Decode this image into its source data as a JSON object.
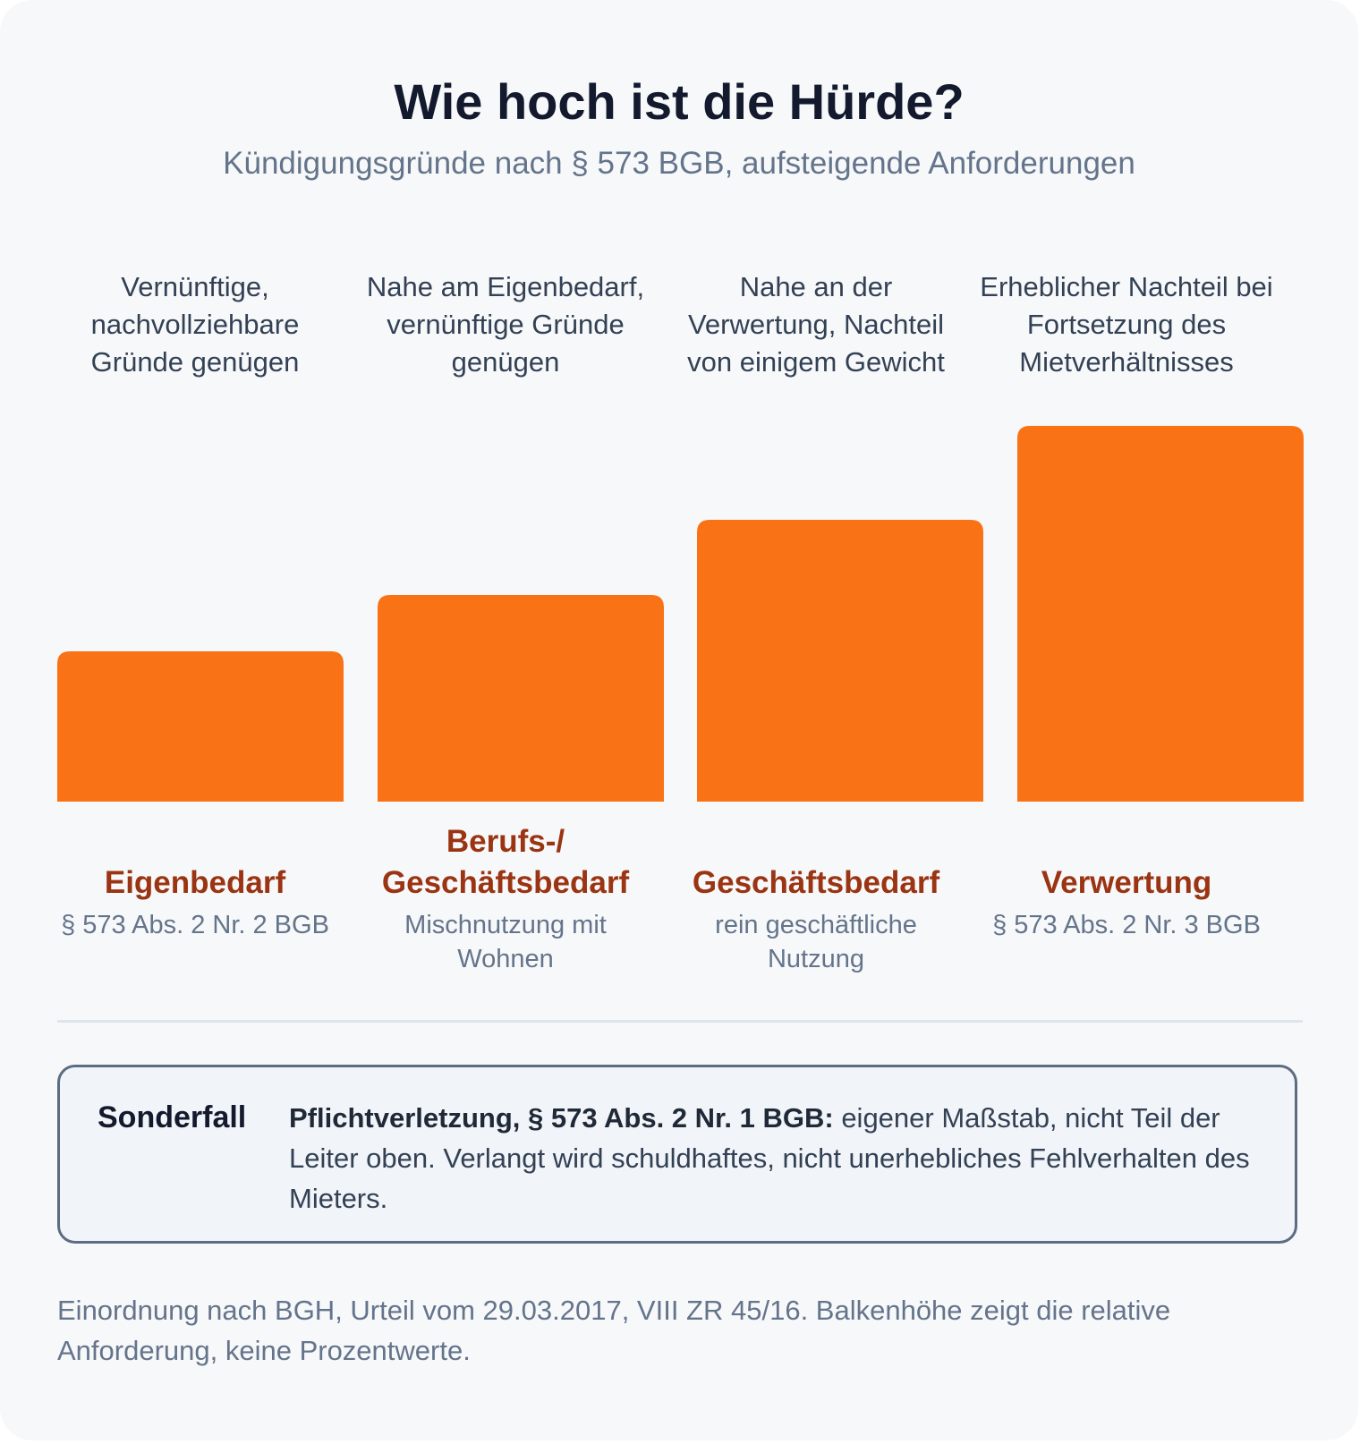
{
  "title": "Wie hoch ist die Hürde?",
  "subtitle": "Kündigungsgründe nach § 573 BGB, aufsteigende Anforderungen",
  "chart_data": {
    "type": "bar",
    "title": "Wie hoch ist die Hürde?",
    "subtitle": "Kündigungsgründe nach § 573 BGB, aufsteigende Anforderungen",
    "categories": [
      "Eigenbedarf",
      "Berufs-/ Geschäftsbedarf",
      "Geschäftsbedarf",
      "Verwertung"
    ],
    "sublabels": [
      "§ 573 Abs. 2 Nr. 2 BGB",
      "Mischnutzung mit Wohnen",
      "rein geschäftliche Nutzung",
      "§ 573 Abs. 2 Nr. 3 BGB"
    ],
    "descriptions": [
      "Vernünftige, nachvollziehbare Gründe genügen",
      "Nahe am Eigenbedarf, vernünftige Gründe genügen",
      "Nahe an der Verwertung, Nachteil von einigem Gewicht",
      "Erheblicher Nachteil bei Fortsetzung des Mietverhältnisses"
    ],
    "values": [
      40,
      55,
      75,
      100
    ],
    "ylim": [
      0,
      100
    ],
    "bar_color": "#f97316",
    "grid": false
  },
  "special": {
    "tag": "Sonderfall",
    "bold": "Pflichtverletzung, § 573 Abs. 2 Nr. 1 BGB:",
    "text": " eigener Maßstab, nicht Teil der Leiter oben. Verlangt wird schuldhaftes, nicht unerhebliches Fehlverhalten des Mieters."
  },
  "footnote": "Einordnung nach BGH, Urteil vom 29.03.2017, VIII ZR 45/16. Balkenhöhe zeigt die relative Anforderung, keine Prozentwerte.",
  "colors": {
    "bar": "#f97316",
    "label": "#9a3412",
    "title": "#141a2e",
    "muted": "#64748b"
  }
}
